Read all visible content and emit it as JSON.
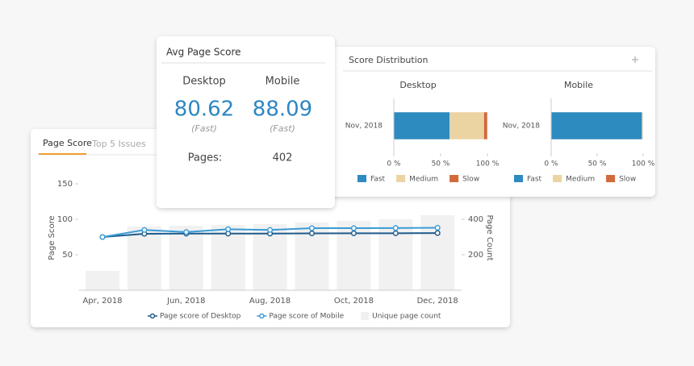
{
  "avg_card": {
    "title": "Avg Page Score",
    "columns": [
      {
        "label": "Desktop",
        "score": "80.62",
        "rating": "(Fast)"
      },
      {
        "label": "Mobile",
        "score": "88.09",
        "rating": "(Fast)"
      }
    ],
    "pages_label": "Pages:",
    "pages_value": "402"
  },
  "distribution_card": {
    "title": "Score Distribution"
  },
  "page_card": {
    "tabs": [
      "Page Score",
      "Top 5 Issues"
    ]
  },
  "chart_data": [
    {
      "type": "combo",
      "y_label": "Page Score",
      "y2_label": "Page Count",
      "categories": [
        "Apr, 2018",
        null,
        "Jun, 2018",
        null,
        "Aug, 2018",
        null,
        "Oct, 2018",
        null,
        "Dec, 2018"
      ],
      "ylim": [
        0,
        150
      ],
      "yticks": [
        50,
        100,
        150
      ],
      "y2lim": [
        0,
        600
      ],
      "y2ticks": [
        200,
        400
      ],
      "series": [
        {
          "name": "Page score of Desktop",
          "type": "line",
          "color": "#1f5b8c",
          "values": [
            75,
            79.6,
            79.8,
            79.8,
            79.9,
            80.1,
            80.2,
            80.3,
            80.6
          ]
        },
        {
          "name": "Page score of Mobile",
          "type": "line",
          "color": "#3b9bd6",
          "values": [
            75,
            85,
            82,
            86,
            85,
            87.5,
            87.5,
            87.7,
            88.1
          ]
        },
        {
          "name": "Unique page count",
          "type": "bar",
          "axis": "y2",
          "color": "#f1f1f1",
          "values": [
            109,
            359,
            364,
            368,
            373,
            382,
            391,
            400,
            423
          ]
        }
      ]
    },
    {
      "type": "stacked_bar",
      "title": "Desktop",
      "categories": [
        "Nov, 2018"
      ],
      "xlim": [
        0,
        100
      ],
      "xticks": [
        {
          "value": 0,
          "label": "0 %"
        },
        {
          "value": 50,
          "label": "50 %"
        },
        {
          "value": 100,
          "label": "100 %"
        }
      ],
      "series": [
        {
          "name": "Fast",
          "color": "#2e8bc0",
          "values": [
            60
          ]
        },
        {
          "name": "Medium",
          "color": "#ecd3a2",
          "values": [
            36
          ]
        },
        {
          "name": "Slow",
          "color": "#d2693b",
          "values": [
            4
          ]
        }
      ]
    },
    {
      "type": "stacked_bar",
      "title": "Mobile",
      "categories": [
        "Nov, 2018"
      ],
      "xlim": [
        0,
        100
      ],
      "xticks": [
        {
          "value": 0,
          "label": "0 %"
        },
        {
          "value": 50,
          "label": "50 %"
        },
        {
          "value": 100,
          "label": "100 %"
        }
      ],
      "series": [
        {
          "name": "Fast",
          "color": "#2e8bc0",
          "values": [
            99
          ]
        },
        {
          "name": "Medium",
          "color": "#ecd3a2",
          "values": [
            1
          ]
        },
        {
          "name": "Slow",
          "color": "#d2693b",
          "values": [
            0
          ]
        }
      ]
    }
  ]
}
